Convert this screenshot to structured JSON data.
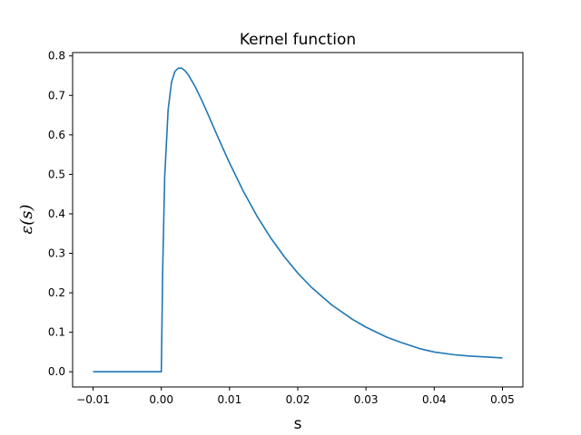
{
  "chart_data": {
    "type": "line",
    "title": "Kernel function",
    "xlabel": "s",
    "ylabel": "ε(s)",
    "xlim": [
      -0.013,
      0.053
    ],
    "ylim": [
      -0.0385,
      0.8085
    ],
    "grid": false,
    "x_ticks": [
      -0.01,
      0.0,
      0.01,
      0.02,
      0.03,
      0.04,
      0.05
    ],
    "x_tick_labels": [
      "−0.01",
      "0.00",
      "0.01",
      "0.02",
      "0.03",
      "0.04",
      "0.05"
    ],
    "y_ticks": [
      0.0,
      0.1,
      0.2,
      0.3,
      0.4,
      0.5,
      0.6,
      0.7,
      0.8
    ],
    "y_tick_labels": [
      "0.0",
      "0.1",
      "0.2",
      "0.3",
      "0.4",
      "0.5",
      "0.6",
      "0.7",
      "0.8"
    ],
    "series": [
      {
        "color": "#1f77b4",
        "x": [
          -0.01,
          -0.005,
          0.0,
          0.0002,
          0.0005,
          0.001,
          0.0015,
          0.002,
          0.0025,
          0.003,
          0.0035,
          0.004,
          0.005,
          0.006,
          0.007,
          0.008,
          0.009,
          0.01,
          0.012,
          0.014,
          0.016,
          0.018,
          0.02,
          0.022,
          0.025,
          0.028,
          0.03,
          0.033,
          0.035,
          0.038,
          0.04,
          0.043,
          0.045,
          0.048,
          0.05
        ],
        "y": [
          0.0,
          0.0,
          0.0,
          0.258,
          0.495,
          0.664,
          0.734,
          0.761,
          0.769,
          0.769,
          0.762,
          0.751,
          0.721,
          0.685,
          0.646,
          0.606,
          0.567,
          0.529,
          0.458,
          0.395,
          0.34,
          0.292,
          0.25,
          0.214,
          0.169,
          0.133,
          0.113,
          0.088,
          0.075,
          0.058,
          0.05,
          0.043,
          0.04,
          0.037,
          0.035
        ]
      }
    ]
  }
}
